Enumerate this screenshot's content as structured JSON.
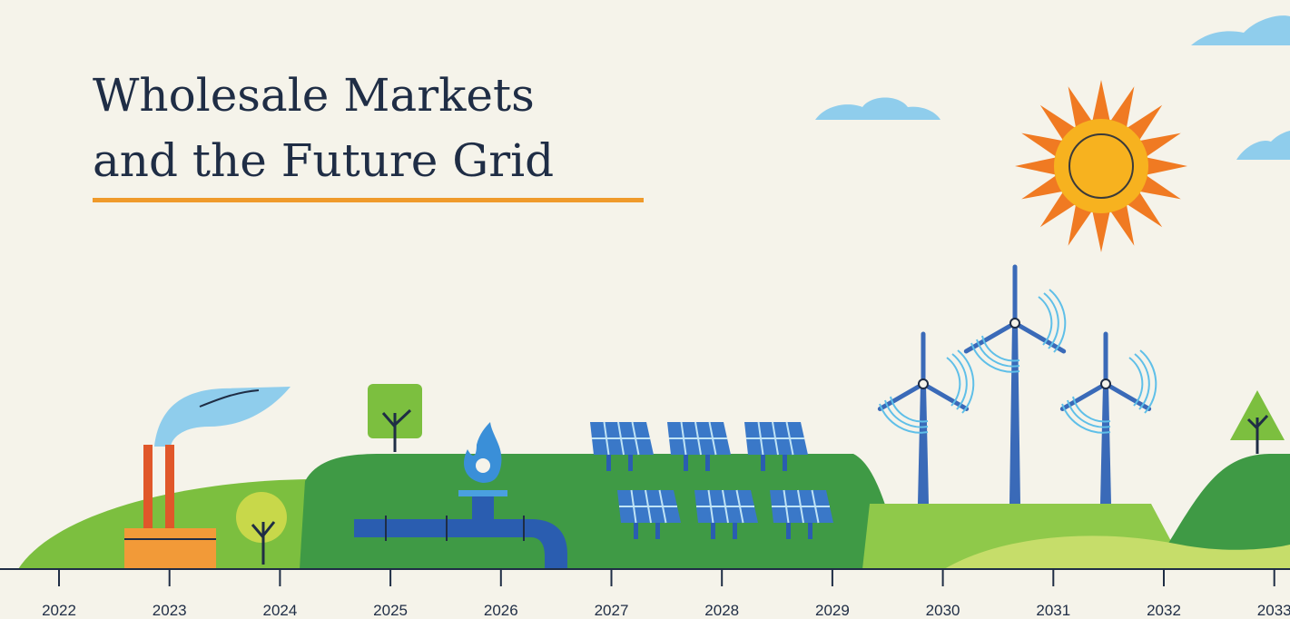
{
  "title": {
    "lines": [
      "Wholesale Markets",
      "and the Future Grid"
    ]
  },
  "timeline": {
    "years": [
      2022,
      2023,
      2024,
      2025,
      2026,
      2027,
      2028,
      2029,
      2030,
      2031,
      2032,
      2033
    ]
  }
}
